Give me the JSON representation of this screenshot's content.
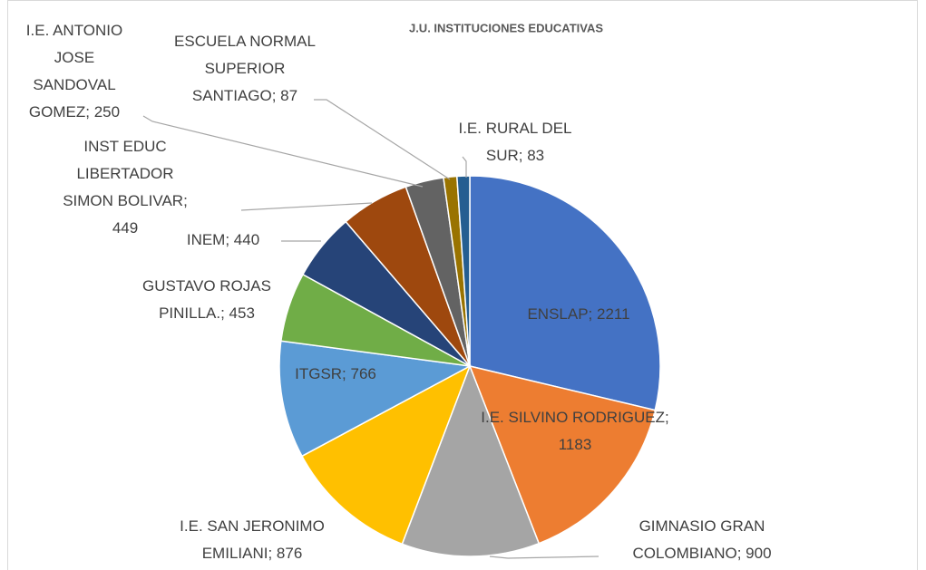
{
  "chart_data": {
    "type": "pie",
    "title": "J.U. INSTITUCIONES EDUCATIVAS",
    "categories": [
      "ENSLAP",
      "I.E. SILVINO RODRIGUEZ",
      "GIMNASIO GRAN COLOMBIANO",
      "I.E. SAN JERONIMO EMILIANI",
      "ITGSR",
      "GUSTAVO ROJAS PINILLA.",
      "INEM",
      "INST EDUC LIBERTADOR SIMON BOLIVAR",
      "I.E. ANTONIO JOSE SANDOVAL GOMEZ",
      "ESCUELA NORMAL SUPERIOR SANTIAGO",
      "I.E. RURAL DEL SUR"
    ],
    "values": [
      2211,
      1183,
      900,
      876,
      766,
      453,
      440,
      449,
      250,
      87,
      83
    ],
    "value_labels": [
      "ENSLAP; 2211",
      "I.E. SILVINO RODRIGUEZ; 1183",
      "GIMNASIO GRAN COLOMBIANO; 900",
      "I.E. SAN JERONIMO EMILIANI; 876",
      "ITGSR; 766",
      "GUSTAVO ROJAS PINILLA.; 453",
      "INEM; 440",
      "INST EDUC LIBERTADOR SIMON BOLIVAR; 449",
      "I.E. ANTONIO JOSE SANDOVAL GOMEZ; 250",
      "ESCUELA NORMAL SUPERIOR SANTIAGO; 87",
      "I.E. RURAL DEL SUR; 83"
    ],
    "colors": [
      "#4472c4",
      "#ed7d31",
      "#a5a5a5",
      "#ffc000",
      "#5b9bd5",
      "#70ad47",
      "#264478",
      "#9e480e",
      "#636363",
      "#997300",
      "#255e91"
    ]
  }
}
